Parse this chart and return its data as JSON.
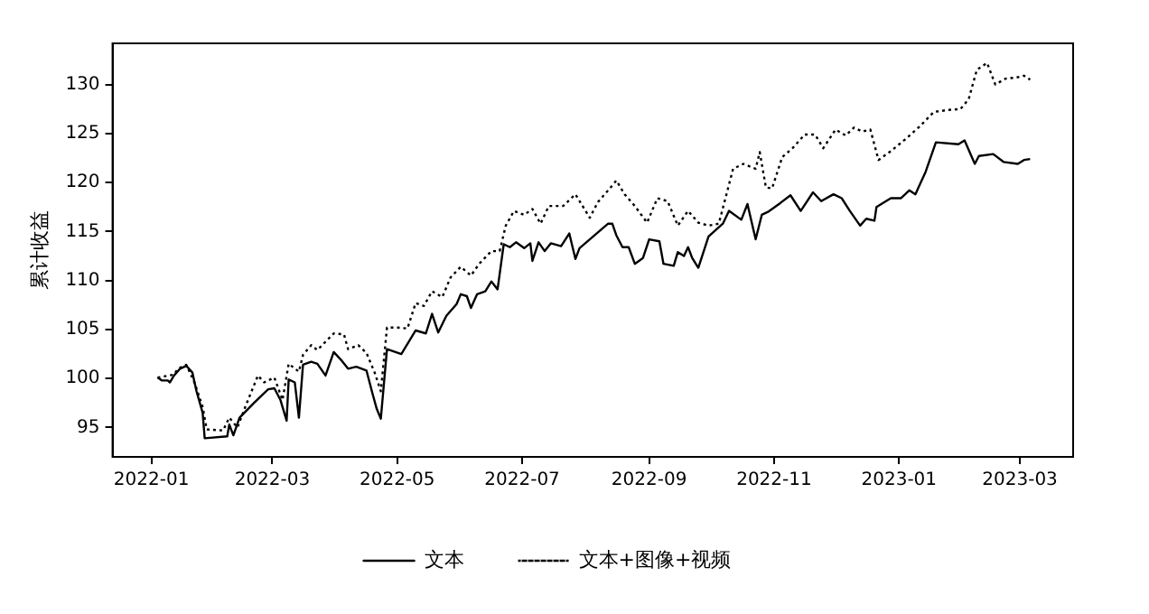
{
  "chart_data": {
    "type": "line",
    "ylabel": "累计收益",
    "legend": "bottom",
    "grid": false,
    "marker": "none",
    "xlim": [
      "2021-12-13",
      "2023-03-27"
    ],
    "ylim": [
      92,
      134.2
    ],
    "xticks": [
      {
        "value": "2022-01-01",
        "label": "2022-01"
      },
      {
        "value": "2022-03-01",
        "label": "2022-03"
      },
      {
        "value": "2022-05-01",
        "label": "2022-05"
      },
      {
        "value": "2022-07-01",
        "label": "2022-07"
      },
      {
        "value": "2022-09-01",
        "label": "2022-09"
      },
      {
        "value": "2022-11-01",
        "label": "2022-11"
      },
      {
        "value": "2023-01-01",
        "label": "2023-01"
      },
      {
        "value": "2023-03-01",
        "label": "2023-03"
      }
    ],
    "yticks": [
      95,
      100,
      105,
      110,
      115,
      120,
      125,
      130
    ],
    "series": [
      {
        "name": "文本",
        "color": "#000000",
        "line_style": "solid",
        "x": [
          "2022-01-04",
          "2022-01-06",
          "2022-01-09",
          "2022-01-10",
          "2022-01-12",
          "2022-01-15",
          "2022-01-18",
          "2022-01-21",
          "2022-01-23",
          "2022-01-26",
          "2022-01-27",
          "2022-02-07",
          "2022-02-08",
          "2022-02-10",
          "2022-02-13",
          "2022-02-20",
          "2022-02-24",
          "2022-02-27",
          "2022-03-02",
          "2022-03-05",
          "2022-03-08",
          "2022-03-09",
          "2022-03-12",
          "2022-03-14",
          "2022-03-16",
          "2022-03-20",
          "2022-03-23",
          "2022-03-27",
          "2022-03-31",
          "2022-04-04",
          "2022-04-07",
          "2022-04-11",
          "2022-04-16",
          "2022-04-19",
          "2022-04-21",
          "2022-04-23",
          "2022-04-26",
          "2022-05-03",
          "2022-05-10",
          "2022-05-15",
          "2022-05-18",
          "2022-05-21",
          "2022-05-25",
          "2022-05-30",
          "2022-06-01",
          "2022-06-04",
          "2022-06-06",
          "2022-06-09",
          "2022-06-13",
          "2022-06-16",
          "2022-06-19",
          "2022-06-22",
          "2022-06-25",
          "2022-06-28",
          "2022-07-02",
          "2022-07-05",
          "2022-07-06",
          "2022-07-09",
          "2022-07-12",
          "2022-07-15",
          "2022-07-20",
          "2022-07-24",
          "2022-07-27",
          "2022-07-29",
          "2022-08-03",
          "2022-08-08",
          "2022-08-12",
          "2022-08-14",
          "2022-08-16",
          "2022-08-19",
          "2022-08-22",
          "2022-08-25",
          "2022-08-29",
          "2022-09-01",
          "2022-09-06",
          "2022-09-08",
          "2022-09-13",
          "2022-09-15",
          "2022-09-18",
          "2022-09-20",
          "2022-09-22",
          "2022-09-25",
          "2022-09-30",
          "2022-10-07",
          "2022-10-10",
          "2022-10-16",
          "2022-10-19",
          "2022-10-23",
          "2022-10-26",
          "2022-10-29",
          "2022-11-04",
          "2022-11-09",
          "2022-11-14",
          "2022-11-20",
          "2022-11-24",
          "2022-11-30",
          "2022-12-04",
          "2022-12-08",
          "2022-12-13",
          "2022-12-16",
          "2022-12-20",
          "2022-12-21",
          "2022-12-28",
          "2023-01-02",
          "2023-01-06",
          "2023-01-09",
          "2023-01-14",
          "2023-01-19",
          "2023-01-30",
          "2023-02-02",
          "2023-02-07",
          "2023-02-09",
          "2023-02-16",
          "2023-02-21",
          "2023-02-28",
          "2023-03-03",
          "2023-03-06"
        ],
        "values": [
          100.1,
          99.8,
          99.8,
          99.6,
          100.3,
          101.0,
          101.3,
          100.6,
          98.7,
          96.5,
          93.9,
          94.1,
          95.3,
          94.2,
          96.0,
          97.5,
          98.3,
          98.9,
          99.0,
          97.8,
          95.7,
          99.9,
          99.6,
          96.0,
          101.4,
          101.7,
          101.5,
          100.3,
          102.7,
          101.8,
          101.0,
          101.2,
          100.8,
          98.4,
          96.9,
          95.9,
          103.0,
          102.5,
          104.9,
          104.6,
          106.6,
          104.7,
          106.4,
          107.6,
          108.6,
          108.4,
          107.2,
          108.6,
          108.9,
          109.9,
          109.1,
          113.7,
          113.4,
          113.9,
          113.3,
          113.8,
          112.0,
          113.9,
          113.0,
          113.8,
          113.5,
          114.8,
          112.2,
          113.3,
          114.2,
          115.1,
          115.8,
          115.8,
          114.6,
          113.4,
          113.4,
          111.7,
          112.3,
          114.2,
          114.0,
          111.7,
          111.5,
          112.9,
          112.5,
          113.4,
          112.3,
          111.3,
          114.5,
          115.8,
          117.1,
          116.2,
          117.8,
          114.2,
          116.7,
          117.0,
          117.9,
          118.7,
          117.1,
          119.0,
          118.1,
          118.8,
          118.4,
          117.1,
          115.6,
          116.3,
          116.1,
          117.5,
          118.4,
          118.4,
          119.2,
          118.8,
          121.1,
          124.1,
          123.9,
          124.3,
          121.9,
          122.7,
          122.9,
          122.1,
          121.9,
          122.3,
          122.4
        ]
      },
      {
        "name": "文本+图像+视频",
        "color": "#000000",
        "line_style": "dotted",
        "x": [
          "2022-01-04",
          "2022-01-12",
          "2022-01-14",
          "2022-01-18",
          "2022-01-22",
          "2022-01-26",
          "2022-01-28",
          "2022-02-05",
          "2022-02-08",
          "2022-02-12",
          "2022-02-16",
          "2022-02-22",
          "2022-02-25",
          "2022-03-02",
          "2022-03-06",
          "2022-03-09",
          "2022-03-14",
          "2022-03-16",
          "2022-03-20",
          "2022-03-23",
          "2022-03-31",
          "2022-04-05",
          "2022-04-07",
          "2022-04-12",
          "2022-04-16",
          "2022-04-20",
          "2022-04-23",
          "2022-04-26",
          "2022-05-01",
          "2022-05-06",
          "2022-05-10",
          "2022-05-14",
          "2022-05-18",
          "2022-05-23",
          "2022-05-27",
          "2022-06-01",
          "2022-06-06",
          "2022-06-10",
          "2022-06-16",
          "2022-06-20",
          "2022-06-23",
          "2022-06-27",
          "2022-07-02",
          "2022-07-06",
          "2022-07-10",
          "2022-07-14",
          "2022-07-21",
          "2022-07-27",
          "2022-08-03",
          "2022-08-07",
          "2022-08-12",
          "2022-08-16",
          "2022-08-20",
          "2022-08-25",
          "2022-08-31",
          "2022-09-05",
          "2022-09-10",
          "2022-09-15",
          "2022-09-20",
          "2022-09-25",
          "2022-09-30",
          "2022-10-05",
          "2022-10-07",
          "2022-10-12",
          "2022-10-17",
          "2022-10-23",
          "2022-10-25",
          "2022-10-28",
          "2022-10-31",
          "2022-11-05",
          "2022-11-10",
          "2022-11-16",
          "2022-11-21",
          "2022-11-25",
          "2022-12-01",
          "2022-12-06",
          "2022-12-10",
          "2022-12-14",
          "2022-12-18",
          "2022-12-22",
          "2022-12-28",
          "2023-01-04",
          "2023-01-11",
          "2023-01-18",
          "2023-01-25",
          "2023-01-31",
          "2023-02-04",
          "2023-02-08",
          "2023-02-13",
          "2023-02-17",
          "2023-02-22",
          "2023-02-27",
          "2023-03-03",
          "2023-03-06"
        ],
        "values": [
          100.1,
          100.4,
          101.0,
          101.4,
          99.6,
          97.1,
          94.8,
          94.7,
          96.0,
          95.0,
          97.2,
          100.3,
          99.6,
          100.1,
          97.8,
          101.5,
          100.7,
          102.4,
          103.4,
          102.9,
          104.6,
          104.5,
          103.0,
          103.4,
          102.6,
          100.6,
          98.7,
          105.2,
          105.2,
          105.1,
          107.7,
          107.4,
          108.9,
          108.3,
          110.3,
          111.4,
          110.5,
          111.7,
          113.0,
          113.0,
          115.6,
          117.1,
          116.7,
          117.3,
          115.8,
          117.6,
          117.6,
          118.8,
          116.4,
          118.0,
          119.2,
          120.2,
          118.8,
          117.6,
          115.9,
          118.4,
          118.1,
          115.6,
          117.1,
          115.9,
          115.6,
          115.8,
          117.4,
          121.4,
          121.9,
          121.4,
          123.1,
          119.5,
          119.4,
          122.6,
          123.5,
          124.9,
          124.9,
          123.5,
          125.4,
          124.8,
          125.6,
          125.2,
          125.4,
          122.3,
          123.2,
          124.4,
          125.7,
          127.2,
          127.4,
          127.5,
          128.5,
          131.5,
          132.2,
          130.0,
          130.6,
          130.7,
          130.9,
          130.5
        ]
      }
    ]
  }
}
